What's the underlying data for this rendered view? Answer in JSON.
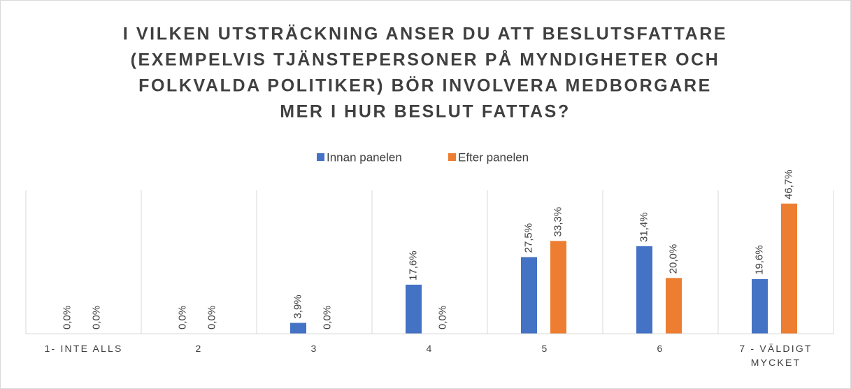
{
  "chart_data": {
    "type": "bar",
    "title": [
      "I VILKEN UTSTRÄCKNING ANSER DU ATT BESLUTSFATTARE",
      "(EXEMPELVIS TJÄNSTEPERSONER PÅ MYNDIGHETER OCH",
      "FOLKVALDA POLITIKER) BÖR INVOLVERA MEDBORGARE",
      "MER I HUR BESLUT FATTAS?"
    ],
    "categories": [
      "1- INTE ALLS",
      "2",
      "3",
      "4",
      "5",
      "6",
      "7 - VÄLDIGT MYCKET"
    ],
    "series": [
      {
        "name": "Innan panelen",
        "color": "#4472c4",
        "values": [
          0,
          0,
          3.9,
          17.6,
          27.5,
          31.4,
          19.6
        ],
        "value_labels": [
          "0,0%",
          "0,0%",
          "3,9%",
          "17,6%",
          "27,5%",
          "31,4%",
          "19,6%"
        ]
      },
      {
        "name": "Efter panelen",
        "color": "#ed7d31",
        "values": [
          0,
          0,
          0,
          0,
          33.3,
          20.0,
          46.7
        ],
        "value_labels": [
          "0,0%",
          "0,0%",
          "0,0%",
          "0,0%",
          "33,3%",
          "20,0%",
          "46,7%"
        ]
      }
    ]
  }
}
